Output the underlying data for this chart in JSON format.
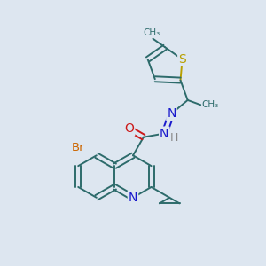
{
  "background_color": "#dde6f0",
  "bond_color": "#2d6b6b",
  "atoms": {
    "S": {
      "color": "#b8a000"
    },
    "N": {
      "color": "#1a1acc"
    },
    "O": {
      "color": "#cc1a1a"
    },
    "Br": {
      "color": "#cc6600"
    },
    "H": {
      "color": "#888888"
    }
  },
  "bond_width": 1.4,
  "font_size": 9.5
}
